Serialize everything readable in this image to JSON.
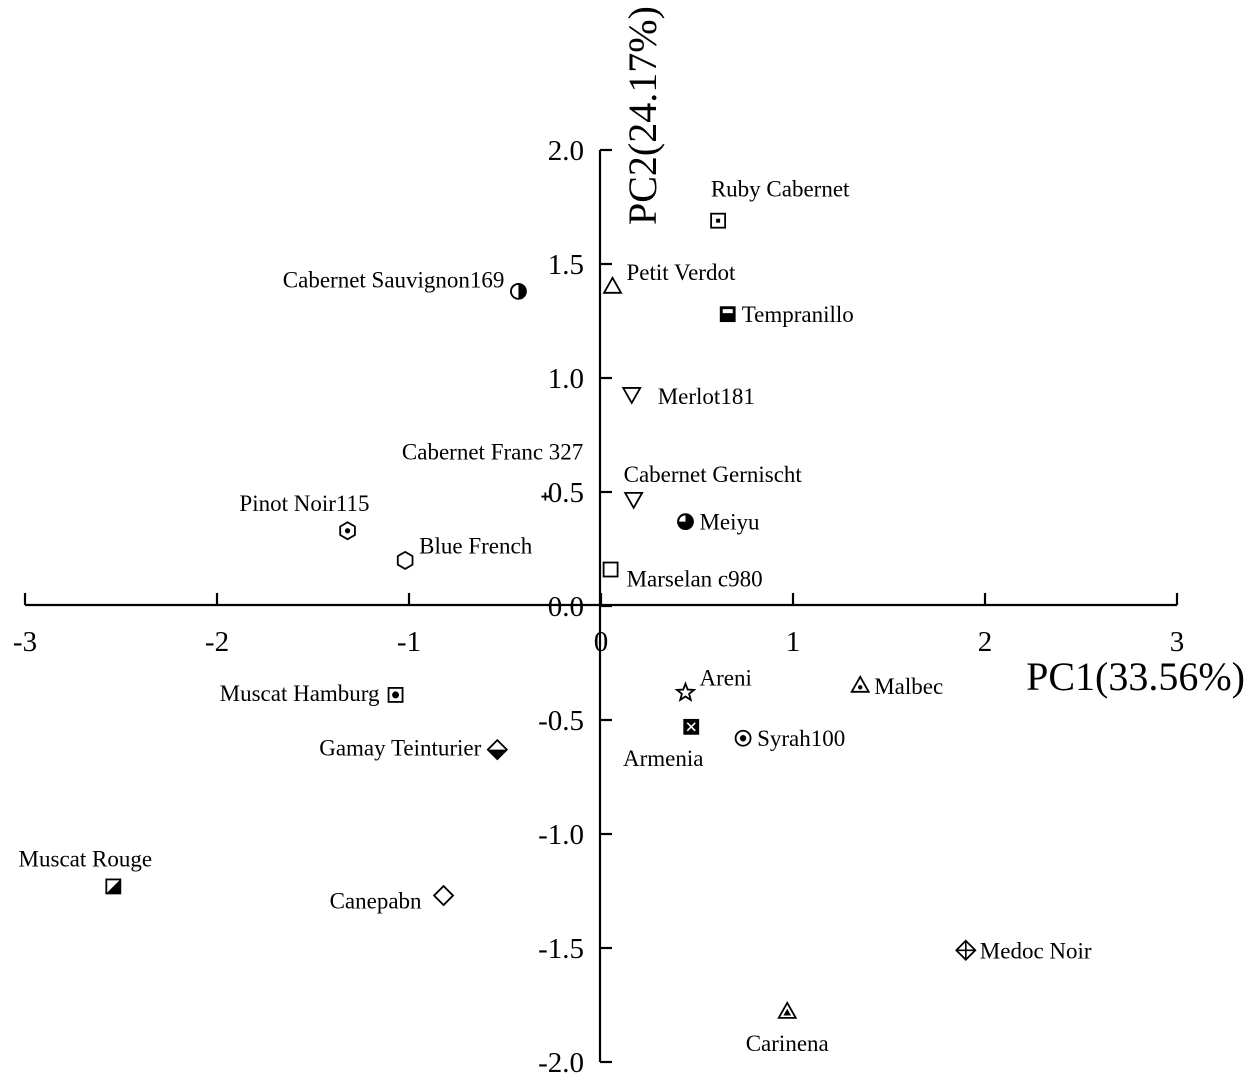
{
  "chart_data": {
    "type": "scatter",
    "xlabel": "PC1(33.56%)",
    "ylabel": "PC2(24.17%)",
    "xlim": [
      -3,
      3
    ],
    "ylim": [
      -2.0,
      2.0
    ],
    "x_ticks": [
      {
        "value": -3,
        "label": "-3"
      },
      {
        "value": -2,
        "label": "-2"
      },
      {
        "value": -1,
        "label": "-1"
      },
      {
        "value": 0,
        "label": "0"
      },
      {
        "value": 1,
        "label": "1"
      },
      {
        "value": 2,
        "label": "2"
      },
      {
        "value": 3,
        "label": "3"
      }
    ],
    "y_ticks": [
      {
        "value": 2.0,
        "label": "2.0"
      },
      {
        "value": 1.5,
        "label": "1.5"
      },
      {
        "value": 1.0,
        "label": "1.0"
      },
      {
        "value": 0.5,
        "label": "0.5"
      },
      {
        "value": 0.0,
        "label": "0.0"
      },
      {
        "value": -0.5,
        "label": "-0.5"
      },
      {
        "value": -1.0,
        "label": "-1.0"
      },
      {
        "value": -1.5,
        "label": "-1.5"
      },
      {
        "value": -2.0,
        "label": "-2.0"
      }
    ],
    "grid": false,
    "points": [
      {
        "name": "Ruby Cabernet",
        "x": 0.61,
        "y": 1.69,
        "marker": "square-dot",
        "label_pos": "above"
      },
      {
        "name": "Petit Verdot",
        "x": 0.06,
        "y": 1.4,
        "marker": "triangle-up",
        "label_pos": "right-up"
      },
      {
        "name": "Cabernet Sauvignon169",
        "x": -0.43,
        "y": 1.38,
        "marker": "circle-half",
        "label_pos": "left-up"
      },
      {
        "name": "Tempranillo",
        "x": 0.66,
        "y": 1.28,
        "marker": "square-half",
        "label_pos": "right"
      },
      {
        "name": "Merlot181",
        "x": 0.16,
        "y": 0.93,
        "marker": "triangle-down",
        "label_pos": "right-far"
      },
      {
        "name": "Cabernet Franc 327",
        "x": -0.29,
        "y": 0.48,
        "marker": "plus",
        "label_pos": "above-left"
      },
      {
        "name": "Cabernet Gernischt",
        "x": 0.17,
        "y": 0.47,
        "marker": "triangle-down",
        "label_pos": "above"
      },
      {
        "name": "Meiyu",
        "x": 0.44,
        "y": 0.37,
        "marker": "circle-quarter",
        "label_pos": "right"
      },
      {
        "name": "Pinot Noir115",
        "x": -1.32,
        "y": 0.33,
        "marker": "hexagon-dot",
        "label_pos": "above-left"
      },
      {
        "name": "Blue French",
        "x": -1.02,
        "y": 0.2,
        "marker": "hexagon",
        "label_pos": "right-up"
      },
      {
        "name": "Marselan c980",
        "x": 0.05,
        "y": 0.16,
        "marker": "square",
        "label_pos": "right-down"
      },
      {
        "name": "Areni",
        "x": 0.44,
        "y": -0.38,
        "marker": "star",
        "label_pos": "right-up"
      },
      {
        "name": "Malbec",
        "x": 1.35,
        "y": -0.35,
        "marker": "triangle-dot",
        "label_pos": "right"
      },
      {
        "name": "Muscat Hamburg",
        "x": -1.07,
        "y": -0.39,
        "marker": "square-dot-bold",
        "label_pos": "left"
      },
      {
        "name": "Armenia",
        "x": 0.47,
        "y": -0.53,
        "marker": "square-x",
        "label_pos": "below"
      },
      {
        "name": "Syrah100",
        "x": 0.74,
        "y": -0.58,
        "marker": "circle-dot",
        "label_pos": "right"
      },
      {
        "name": "Gamay Teinturier",
        "x": -0.54,
        "y": -0.63,
        "marker": "diamond-half",
        "label_pos": "left"
      },
      {
        "name": "Muscat Rouge",
        "x": -2.54,
        "y": -1.23,
        "marker": "square-diag",
        "label_pos": "above-left"
      },
      {
        "name": "Canepabn",
        "x": -0.82,
        "y": -1.27,
        "marker": "diamond",
        "label_pos": "left-down"
      },
      {
        "name": "Medoc Noir",
        "x": 1.9,
        "y": -1.51,
        "marker": "diamond-plus",
        "label_pos": "right"
      },
      {
        "name": "Carinena",
        "x": 0.97,
        "y": -1.78,
        "marker": "triangle-up-bold",
        "label_pos": "below"
      }
    ]
  }
}
